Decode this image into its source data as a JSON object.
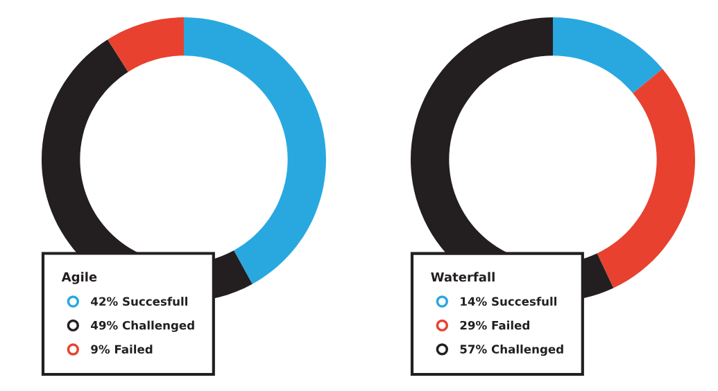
{
  "chart_data": [
    {
      "type": "donut",
      "legend_title": "Agile",
      "categories": [
        "Succesfull",
        "Challenged",
        "Failed"
      ],
      "values": [
        42,
        49,
        9
      ],
      "value_labels": [
        "42%",
        "49%",
        "9%"
      ],
      "colors": [
        "#29a8e0",
        "#231f20",
        "#e8412f"
      ],
      "legend": "bottom left"
    },
    {
      "type": "donut",
      "legend_title": "Waterfall",
      "categories": [
        "Succesfull",
        "Failed",
        "Challenged"
      ],
      "values": [
        14,
        29,
        57
      ],
      "value_labels": [
        "14%",
        "29%",
        "57%"
      ],
      "colors": [
        "#29a8e0",
        "#e8412f",
        "#231f20"
      ],
      "legend": "bottom left"
    }
  ]
}
